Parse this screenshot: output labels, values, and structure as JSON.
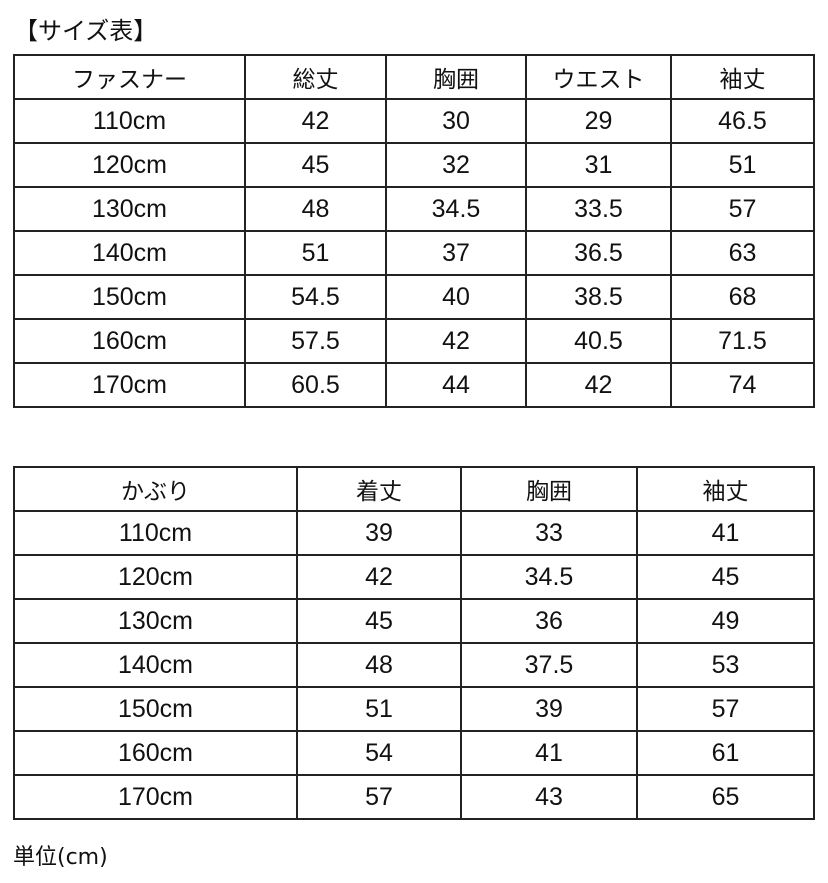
{
  "title": "【サイズ表】",
  "table1": {
    "headers": [
      "ファスナー",
      "総丈",
      "胸囲",
      "ウエスト",
      "袖丈"
    ],
    "rows": [
      [
        "110cm",
        "42",
        "30",
        "29",
        "46.5"
      ],
      [
        "120cm",
        "45",
        "32",
        "31",
        "51"
      ],
      [
        "130cm",
        "48",
        "34.5",
        "33.5",
        "57"
      ],
      [
        "140cm",
        "51",
        "37",
        "36.5",
        "63"
      ],
      [
        "150cm",
        "54.5",
        "40",
        "38.5",
        "68"
      ],
      [
        "160cm",
        "57.5",
        "42",
        "40.5",
        "71.5"
      ],
      [
        "170cm",
        "60.5",
        "44",
        "42",
        "74"
      ]
    ]
  },
  "table2": {
    "headers": [
      "かぶり",
      "着丈",
      "胸囲",
      "袖丈"
    ],
    "rows": [
      [
        "110cm",
        "39",
        "33",
        "41"
      ],
      [
        "120cm",
        "42",
        "34.5",
        "45"
      ],
      [
        "130cm",
        "45",
        "36",
        "49"
      ],
      [
        "140cm",
        "48",
        "37.5",
        "53"
      ],
      [
        "150cm",
        "51",
        "39",
        "57"
      ],
      [
        "160cm",
        "54",
        "41",
        "61"
      ],
      [
        "170cm",
        "57",
        "43",
        "65"
      ]
    ]
  },
  "footer": "単位(cm)"
}
